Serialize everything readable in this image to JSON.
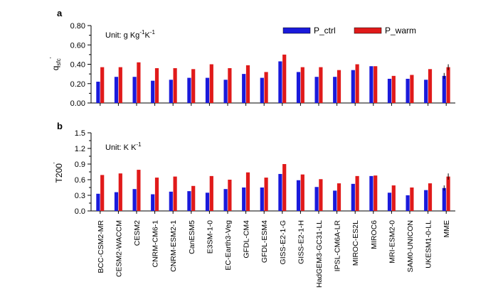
{
  "colors": {
    "ctrl": "#1a1adb",
    "warm": "#e01a1a",
    "axis": "#000000"
  },
  "categories": [
    "BCC-CSM2-MR",
    "CESM2-WACCM",
    "CESM2",
    "CNRM-CM6-1",
    "CNRM-ESM2-1",
    "CanESM5",
    "E3SM-1-0",
    "EC-Earth3-Veg",
    "GFDL-CM4",
    "GFDL-ESM4",
    "GISS-E2-1-G",
    "GISS-E2-1-H",
    "HadGEM3-GC31-LL",
    "IPSL-CM6A-LR",
    "MIROC-ES2L",
    "MIROC6",
    "MRI-ESM2-0",
    "SAM0-UNICON",
    "UKESM1-0-LL",
    "MME"
  ],
  "legend": {
    "ctrl": "P_ctrl",
    "warm": "P_warm"
  },
  "chart_data": [
    {
      "type": "bar",
      "panel": "a",
      "ylabel_main": "q",
      "ylabel_sub": "sfc",
      "ylabel_sup": "'",
      "unit_prefix": "Unit: g Kg",
      "unit_sup1": "-1",
      "unit_mid": "K",
      "unit_sup2": "-1",
      "ylim": [
        0,
        0.8
      ],
      "yticks": [
        "0.00",
        "0.20",
        "0.40",
        "0.60",
        "0.80"
      ],
      "ytick_values": [
        0,
        0.2,
        0.4,
        0.6,
        0.8
      ],
      "series": [
        {
          "name": "P_ctrl",
          "values": [
            0.22,
            0.27,
            0.27,
            0.23,
            0.24,
            0.26,
            0.26,
            0.24,
            0.3,
            0.26,
            0.43,
            0.32,
            0.27,
            0.27,
            0.34,
            0.38,
            0.25,
            0.25,
            0.24,
            0.28
          ]
        },
        {
          "name": "P_warm",
          "values": [
            0.37,
            0.37,
            0.42,
            0.36,
            0.36,
            0.35,
            0.4,
            0.36,
            0.39,
            0.32,
            0.5,
            0.37,
            0.37,
            0.34,
            0.4,
            0.38,
            0.28,
            0.29,
            0.35,
            0.37
          ]
        }
      ],
      "error_bars": {
        "MME": {
          "P_ctrl": 0.03,
          "P_warm": 0.03
        }
      }
    },
    {
      "type": "bar",
      "panel": "b",
      "ylabel_main": "T200",
      "ylabel_sup": "'",
      "unit_prefix": "Unit: K K",
      "unit_sup1": "-1",
      "ylim": [
        0,
        1.5
      ],
      "yticks": [
        "0.0",
        "0.3",
        "0.6",
        "0.9",
        "1.2",
        "1.5"
      ],
      "ytick_values": [
        0,
        0.3,
        0.6,
        0.9,
        1.2,
        1.5
      ],
      "series": [
        {
          "name": "P_ctrl",
          "values": [
            0.33,
            0.36,
            0.42,
            0.32,
            0.37,
            0.38,
            0.35,
            0.42,
            0.45,
            0.45,
            0.71,
            0.59,
            0.46,
            0.39,
            0.52,
            0.67,
            0.35,
            0.3,
            0.4,
            0.44
          ]
        },
        {
          "name": "P_warm",
          "values": [
            0.69,
            0.72,
            0.79,
            0.64,
            0.66,
            0.48,
            0.67,
            0.6,
            0.74,
            0.64,
            0.9,
            0.7,
            0.61,
            0.53,
            0.67,
            0.68,
            0.49,
            0.45,
            0.53,
            0.66
          ]
        }
      ],
      "error_bars": {
        "MME": {
          "P_ctrl": 0.05,
          "P_warm": 0.06
        }
      }
    }
  ]
}
